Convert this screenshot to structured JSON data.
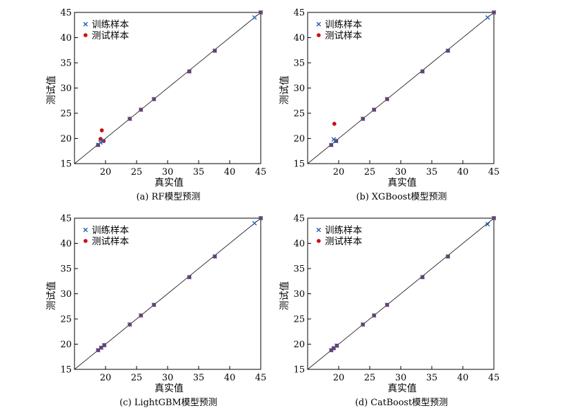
{
  "chart_data": [
    {
      "type": "scatter",
      "caption": "(a) RF模型预测",
      "xlabel": "真实值",
      "ylabel": "测试值",
      "xlim": [
        15,
        45
      ],
      "ylim": [
        15,
        45
      ],
      "xticks": [
        "20",
        "25",
        "30",
        "35",
        "40",
        "45"
      ],
      "yticks": [
        "15",
        "20",
        "25",
        "30",
        "35",
        "40",
        "45"
      ],
      "grid": false,
      "legend_position": "top-left",
      "reference_line": "y = x",
      "series": [
        {
          "name": "训练样本",
          "marker": "x",
          "color": "#1f5fb4",
          "x": [
            18.8,
            19.2,
            19.6,
            23.9,
            25.7,
            27.8,
            33.5,
            37.6,
            44.0,
            45.0
          ],
          "y": [
            18.7,
            19.2,
            19.5,
            23.9,
            25.7,
            27.8,
            33.3,
            37.4,
            44.0,
            45.0
          ]
        },
        {
          "name": "测试样本",
          "marker": "o",
          "color": "#cc1111",
          "x": [
            18.8,
            19.2,
            19.4,
            19.7,
            23.9,
            25.7,
            27.8,
            33.5,
            37.6,
            45.0
          ],
          "y": [
            18.7,
            19.9,
            21.6,
            19.5,
            23.9,
            25.7,
            27.8,
            33.3,
            37.4,
            45.0
          ]
        }
      ]
    },
    {
      "type": "scatter",
      "caption": "(b) XGBoost模型预测",
      "xlabel": "真实值",
      "ylabel": "测试值",
      "xlim": [
        15,
        45
      ],
      "ylim": [
        15,
        45
      ],
      "xticks": [
        "20",
        "25",
        "30",
        "35",
        "40",
        "45"
      ],
      "yticks": [
        "15",
        "20",
        "25",
        "30",
        "35",
        "40",
        "45"
      ],
      "grid": false,
      "legend_position": "top-left",
      "reference_line": "y = x",
      "series": [
        {
          "name": "训练样本",
          "marker": "x",
          "color": "#1f5fb4",
          "x": [
            18.8,
            19.2,
            19.6,
            23.9,
            25.7,
            27.8,
            33.5,
            37.6,
            44.0,
            45.0
          ],
          "y": [
            18.7,
            19.8,
            19.5,
            23.9,
            25.7,
            27.8,
            33.3,
            37.4,
            44.0,
            45.0
          ]
        },
        {
          "name": "测试样本",
          "marker": "o",
          "color": "#cc1111",
          "x": [
            18.8,
            19.3,
            19.6,
            23.9,
            25.7,
            27.8,
            33.5,
            37.6,
            45.0
          ],
          "y": [
            18.7,
            22.9,
            19.5,
            23.9,
            25.7,
            27.8,
            33.3,
            37.4,
            45.0
          ]
        }
      ]
    },
    {
      "type": "scatter",
      "caption": "(c) LightGBM模型预测",
      "xlabel": "真实值",
      "ylabel": "测试值",
      "xlim": [
        15,
        45
      ],
      "ylim": [
        15,
        45
      ],
      "xticks": [
        "20",
        "25",
        "30",
        "35",
        "40",
        "45"
      ],
      "yticks": [
        "15",
        "20",
        "25",
        "30",
        "35",
        "40",
        "45"
      ],
      "grid": false,
      "legend_position": "top-left",
      "reference_line": "y = x",
      "series": [
        {
          "name": "训练样本",
          "marker": "x",
          "color": "#1f5fb4",
          "x": [
            18.8,
            19.3,
            19.8,
            23.9,
            25.7,
            27.8,
            33.5,
            37.6,
            44.0,
            45.0
          ],
          "y": [
            18.8,
            19.3,
            19.8,
            23.9,
            25.7,
            27.8,
            33.3,
            37.4,
            44.0,
            45.0
          ]
        },
        {
          "name": "测试样本",
          "marker": "o",
          "color": "#cc1111",
          "x": [
            18.8,
            19.3,
            19.8,
            23.9,
            25.7,
            27.8,
            33.5,
            37.6,
            45.0
          ],
          "y": [
            18.8,
            19.3,
            19.8,
            23.9,
            25.7,
            27.8,
            33.3,
            37.4,
            45.0
          ]
        }
      ]
    },
    {
      "type": "scatter",
      "caption": "(d) CatBoost模型预测",
      "xlabel": "真实值",
      "ylabel": "测试值",
      "xlim": [
        15,
        45
      ],
      "ylim": [
        15,
        45
      ],
      "xticks": [
        "20",
        "25",
        "30",
        "35",
        "40",
        "45"
      ],
      "yticks": [
        "15",
        "20",
        "25",
        "30",
        "35",
        "40",
        "45"
      ],
      "grid": false,
      "legend_position": "top-left",
      "reference_line": "y = x",
      "series": [
        {
          "name": "训练样本",
          "marker": "x",
          "color": "#1f5fb4",
          "x": [
            18.8,
            19.2,
            19.7,
            23.9,
            25.7,
            27.8,
            33.5,
            37.6,
            44.0,
            45.0
          ],
          "y": [
            18.8,
            19.2,
            19.7,
            23.9,
            25.7,
            27.8,
            33.3,
            37.4,
            43.8,
            45.0
          ]
        },
        {
          "name": "测试样本",
          "marker": "o",
          "color": "#cc1111",
          "x": [
            18.8,
            19.2,
            19.7,
            23.9,
            25.7,
            27.8,
            33.5,
            37.6,
            45.0
          ],
          "y": [
            18.8,
            19.2,
            19.7,
            23.9,
            25.7,
            27.8,
            33.3,
            37.4,
            45.0
          ]
        }
      ]
    }
  ]
}
